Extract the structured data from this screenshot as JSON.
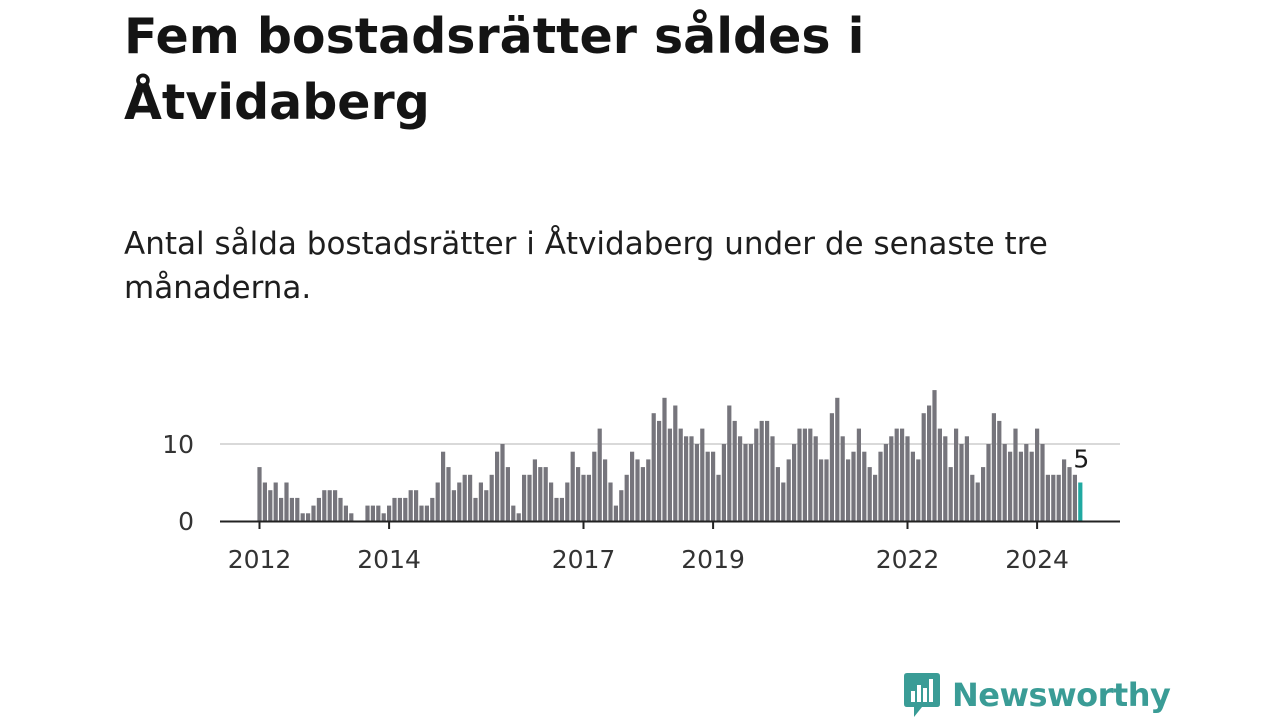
{
  "title": "Fem bostadsrätter såldes i Åtvidaberg",
  "subtitle": "Antal sålda bostadsrätter i Åtvidaberg under de senaste tre månaderna.",
  "brand": {
    "name": "Newsworthy",
    "color": "#3a9c96",
    "icon": "bar-chart-bubble-icon"
  },
  "chart_data": {
    "type": "bar",
    "start": "2012-01",
    "ylim": [
      0,
      18
    ],
    "yticks": [
      0,
      10
    ],
    "xticks": [
      {
        "label": "2012",
        "date": "2012-01"
      },
      {
        "label": "2014",
        "date": "2014-01"
      },
      {
        "label": "2017",
        "date": "2017-01"
      },
      {
        "label": "2019",
        "date": "2019-01"
      },
      {
        "label": "2022",
        "date": "2022-01"
      },
      {
        "label": "2024",
        "date": "2024-01"
      }
    ],
    "bar_color": "#76757c",
    "highlight_color": "#20a9a1",
    "highlight_label": "5",
    "grid": true,
    "values": [
      7,
      5,
      4,
      5,
      3,
      5,
      3,
      3,
      1,
      1,
      2,
      3,
      4,
      4,
      4,
      3,
      2,
      1,
      0,
      0,
      2,
      2,
      2,
      1,
      2,
      3,
      3,
      3,
      4,
      4,
      2,
      2,
      3,
      5,
      9,
      7,
      4,
      5,
      6,
      6,
      3,
      5,
      4,
      6,
      9,
      10,
      7,
      2,
      1,
      6,
      6,
      8,
      7,
      7,
      5,
      3,
      3,
      5,
      9,
      7,
      6,
      6,
      9,
      12,
      8,
      5,
      2,
      4,
      6,
      9,
      8,
      7,
      8,
      14,
      13,
      16,
      12,
      15,
      12,
      11,
      11,
      10,
      12,
      9,
      9,
      6,
      10,
      15,
      13,
      11,
      10,
      10,
      12,
      13,
      13,
      11,
      7,
      5,
      8,
      10,
      12,
      12,
      12,
      11,
      8,
      8,
      14,
      16,
      11,
      8,
      9,
      12,
      9,
      7,
      6,
      9,
      10,
      11,
      12,
      12,
      11,
      9,
      8,
      14,
      15,
      17,
      12,
      11,
      7,
      12,
      10,
      11,
      6,
      5,
      7,
      10,
      14,
      13,
      10,
      9,
      12,
      9,
      10,
      9,
      12,
      10,
      6,
      6,
      6,
      8,
      7,
      6,
      5
    ]
  }
}
